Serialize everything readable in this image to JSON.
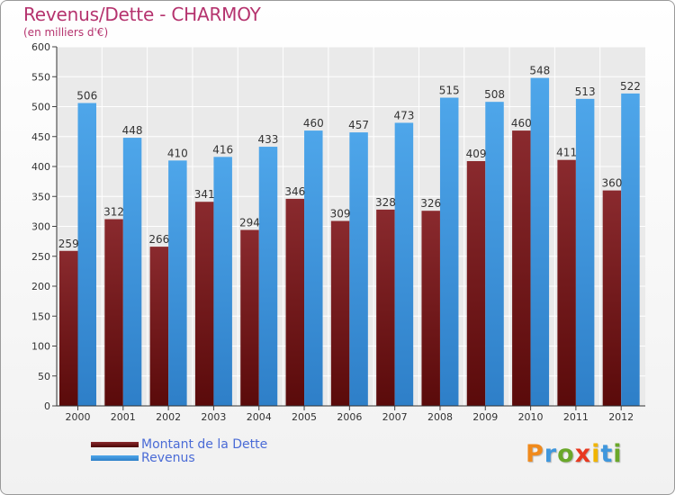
{
  "header": {
    "title": "Revenus/Dette - CHARMOY",
    "subtitle": "(en milliers d'€)"
  },
  "colors": {
    "dette": "#7a1f1f",
    "revenus": "#3f97dd",
    "title": "#b5336e",
    "legend_text": "#4a6bd6"
  },
  "chart_data": {
    "type": "bar",
    "title": "Revenus/Dette - CHARMOY",
    "ylabel": "(en milliers d'€)",
    "xlabel": "",
    "categories": [
      "2000",
      "2001",
      "2002",
      "2003",
      "2004",
      "2005",
      "2006",
      "2007",
      "2008",
      "2009",
      "2010",
      "2011",
      "2012"
    ],
    "series": [
      {
        "name": "Montant de la Dette",
        "values": [
          259,
          312,
          266,
          341,
          294,
          346,
          309,
          328,
          326,
          409,
          460,
          411,
          360
        ]
      },
      {
        "name": "Revenus",
        "values": [
          506,
          448,
          410,
          416,
          433,
          460,
          457,
          473,
          515,
          508,
          548,
          513,
          522
        ]
      }
    ],
    "ylim": [
      0,
      600
    ],
    "yticks": [
      "0",
      "50",
      "100",
      "150",
      "200",
      "250",
      "300",
      "350",
      "400",
      "450",
      "500",
      "550",
      "600"
    ],
    "grid": true,
    "legend_position": "bottom-left"
  },
  "legend": {
    "items": [
      {
        "label": "Montant de la Dette"
      },
      {
        "label": "Revenus"
      }
    ]
  },
  "logo": {
    "letters": [
      {
        "ch": "P",
        "color": "#f08a1c"
      },
      {
        "ch": "r",
        "color": "#3f97dd"
      },
      {
        "ch": "o",
        "color": "#6aa82a"
      },
      {
        "ch": "x",
        "color": "#e8381f"
      },
      {
        "ch": "i",
        "color": "#f0b400"
      },
      {
        "ch": "t",
        "color": "#3f97dd"
      },
      {
        "ch": "i",
        "color": "#6aa82a"
      }
    ]
  }
}
